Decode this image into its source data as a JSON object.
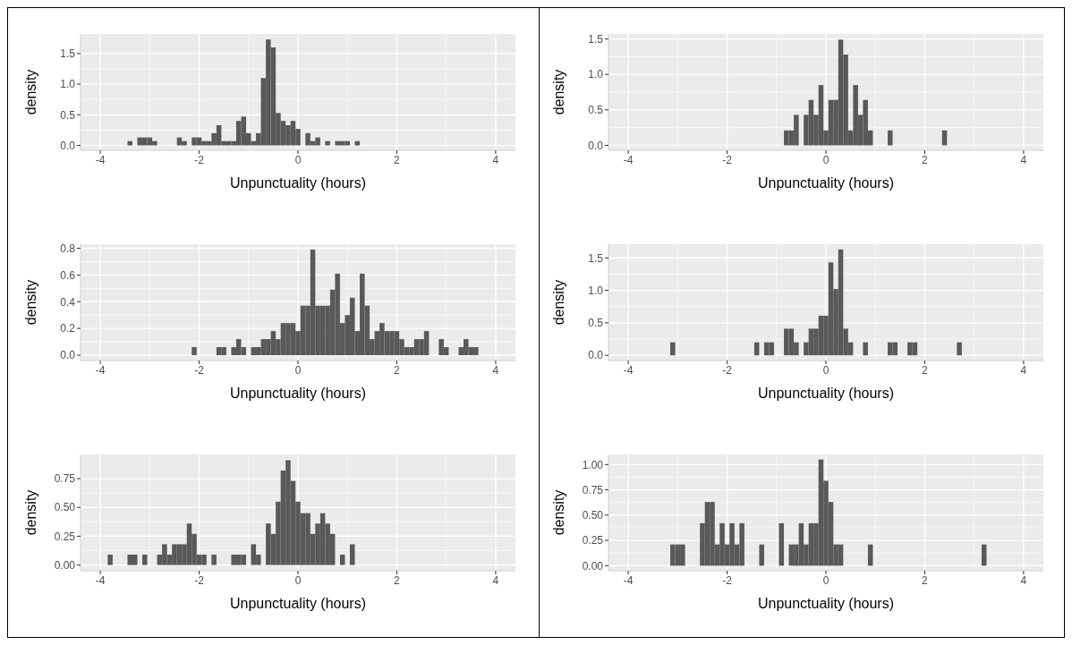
{
  "chart_data": [
    {
      "type": "histogram",
      "xlabel": "Unpunctuality (hours)",
      "ylabel": "density",
      "color": "#595959",
      "grid": true,
      "xlim": [
        -4.4,
        4.4
      ],
      "ylim": [
        -0.08,
        1.82
      ],
      "xticks": [
        -4,
        -2,
        0,
        2,
        4
      ],
      "yticks": [
        {
          "value": 0,
          "label": "0.0"
        },
        {
          "value": 0.5,
          "label": "0.5"
        },
        {
          "value": 1,
          "label": "1.0"
        },
        {
          "value": 1.5,
          "label": "1.5"
        }
      ],
      "bins": [
        -3.45,
        -3.35,
        -3.25,
        -3.15,
        -3.05,
        -2.95,
        -2.85,
        -2.75,
        -2.65,
        -2.55,
        -2.45,
        -2.35,
        -2.25,
        -2.15,
        -2.05,
        -1.95,
        -1.85,
        -1.75,
        -1.65,
        -1.55,
        -1.45,
        -1.35,
        -1.25,
        -1.15,
        -1.05,
        -0.95,
        -0.85,
        -0.75,
        -0.65,
        -0.55,
        -0.45,
        -0.35,
        -0.25,
        -0.15,
        -0.05,
        0.05,
        0.15,
        0.25,
        0.35,
        0.45,
        0.55,
        0.65,
        0.75,
        0.85,
        0.95,
        1.05,
        1.15,
        1.25
      ],
      "values": [
        0.07,
        0,
        0.13,
        0.13,
        0.13,
        0.07,
        0,
        0,
        0,
        0,
        0.13,
        0.07,
        0,
        0.13,
        0.13,
        0.07,
        0.07,
        0.2,
        0.33,
        0.07,
        0.07,
        0.07,
        0.4,
        0.47,
        0.2,
        0.07,
        0.2,
        1.1,
        1.73,
        1.6,
        0.53,
        0.4,
        0.33,
        0.4,
        0.27,
        0,
        0.2,
        0.07,
        0.13,
        0,
        0.07,
        0,
        0.07,
        0.07,
        0.07,
        0,
        0.07
      ]
    },
    {
      "type": "histogram",
      "xlabel": "Unpunctuality (hours)",
      "ylabel": "density",
      "color": "#595959",
      "grid": true,
      "xlim": [
        -4.4,
        4.4
      ],
      "ylim": [
        -0.07,
        1.57
      ],
      "xticks": [
        -4,
        -2,
        0,
        2,
        4
      ],
      "yticks": [
        {
          "value": 0,
          "label": "0.0"
        },
        {
          "value": 0.5,
          "label": "0.5"
        },
        {
          "value": 1,
          "label": "1.0"
        },
        {
          "value": 1.5,
          "label": "1.5"
        }
      ],
      "bins": [
        -0.85,
        -0.75,
        -0.65,
        -0.55,
        -0.45,
        -0.35,
        -0.25,
        -0.15,
        -0.05,
        0.05,
        0.15,
        0.25,
        0.35,
        0.45,
        0.55,
        0.65,
        0.75,
        0.85,
        0.95,
        1.05,
        1.15,
        1.25,
        1.35,
        1.45,
        1.55,
        1.65,
        1.75,
        1.85,
        1.95,
        2.05,
        2.15,
        2.25,
        2.35,
        2.45
      ],
      "values": [
        0.21,
        0.21,
        0.43,
        0,
        0.43,
        0.64,
        0.43,
        0.85,
        0.21,
        0.64,
        0.64,
        1.49,
        1.28,
        0.21,
        0.85,
        0.43,
        0.64,
        0.21,
        0,
        0,
        0,
        0.21,
        0,
        0,
        0,
        0,
        0,
        0,
        0,
        0,
        0,
        0,
        0.21
      ]
    },
    {
      "type": "histogram",
      "xlabel": "Unpunctuality (hours)",
      "ylabel": "density",
      "color": "#595959",
      "grid": true,
      "xlim": [
        -4.4,
        4.4
      ],
      "ylim": [
        -0.04,
        0.83
      ],
      "xticks": [
        -4,
        -2,
        0,
        2,
        4
      ],
      "yticks": [
        {
          "value": 0,
          "label": "0.0"
        },
        {
          "value": 0.2,
          "label": "0.2"
        },
        {
          "value": 0.4,
          "label": "0.4"
        },
        {
          "value": 0.6,
          "label": "0.6"
        },
        {
          "value": 0.8,
          "label": "0.8"
        }
      ],
      "bins": [
        -2.15,
        -2.05,
        -1.95,
        -1.85,
        -1.75,
        -1.65,
        -1.55,
        -1.45,
        -1.35,
        -1.25,
        -1.15,
        -1.05,
        -0.95,
        -0.85,
        -0.75,
        -0.65,
        -0.55,
        -0.45,
        -0.35,
        -0.25,
        -0.15,
        -0.05,
        0.05,
        0.15,
        0.25,
        0.35,
        0.45,
        0.55,
        0.65,
        0.75,
        0.85,
        0.95,
        1.05,
        1.15,
        1.25,
        1.35,
        1.45,
        1.55,
        1.65,
        1.75,
        1.85,
        1.95,
        2.05,
        2.15,
        2.25,
        2.35,
        2.45,
        2.55,
        2.65,
        2.75,
        2.85,
        2.95,
        3.05,
        3.15,
        3.25,
        3.35,
        3.45,
        3.55,
        3.65
      ],
      "values": [
        0.06,
        0,
        0,
        0,
        0,
        0.06,
        0.06,
        0,
        0.06,
        0.12,
        0.06,
        0,
        0.06,
        0.06,
        0.12,
        0.12,
        0.18,
        0.12,
        0.24,
        0.24,
        0.24,
        0.18,
        0.37,
        0.37,
        0.79,
        0.37,
        0.37,
        0.37,
        0.49,
        0.61,
        0.24,
        0.3,
        0.43,
        0.18,
        0.61,
        0.37,
        0.12,
        0.18,
        0.24,
        0.18,
        0.18,
        0.18,
        0.12,
        0.06,
        0.06,
        0.12,
        0.12,
        0.18,
        0,
        0,
        0.12,
        0.06,
        0,
        0,
        0.06,
        0.12,
        0.06,
        0.06
      ]
    },
    {
      "type": "histogram",
      "xlabel": "Unpunctuality (hours)",
      "ylabel": "density",
      "color": "#595959",
      "grid": true,
      "xlim": [
        -4.4,
        4.4
      ],
      "ylim": [
        -0.08,
        1.71
      ],
      "xticks": [
        -4,
        -2,
        0,
        2,
        4
      ],
      "yticks": [
        {
          "value": 0,
          "label": "0.0"
        },
        {
          "value": 0.5,
          "label": "0.5"
        },
        {
          "value": 1,
          "label": "1.0"
        },
        {
          "value": 1.5,
          "label": "1.5"
        }
      ],
      "bins": [
        -3.15,
        -3.05,
        -2.95,
        -2.85,
        -2.75,
        -2.65,
        -2.55,
        -2.45,
        -2.35,
        -2.25,
        -2.15,
        -2.05,
        -1.95,
        -1.85,
        -1.75,
        -1.65,
        -1.55,
        -1.45,
        -1.35,
        -1.25,
        -1.15,
        -1.05,
        -0.95,
        -0.85,
        -0.75,
        -0.65,
        -0.55,
        -0.45,
        -0.35,
        -0.25,
        -0.15,
        -0.05,
        0.05,
        0.15,
        0.25,
        0.35,
        0.45,
        0.55,
        0.65,
        0.75,
        0.85,
        0.95,
        1.05,
        1.15,
        1.25,
        1.35,
        1.45,
        1.55,
        1.65,
        1.75,
        1.85,
        1.95,
        2.05,
        2.15,
        2.25,
        2.35,
        2.45,
        2.55,
        2.65,
        2.75
      ],
      "values": [
        0.2,
        0,
        0,
        0,
        0,
        0,
        0,
        0,
        0,
        0,
        0,
        0,
        0,
        0,
        0,
        0,
        0,
        0.2,
        0,
        0.2,
        0.2,
        0,
        0,
        0.41,
        0.41,
        0.2,
        0,
        0.2,
        0.41,
        0.41,
        0.61,
        0.61,
        1.43,
        1.02,
        1.63,
        0.41,
        0.2,
        0,
        0,
        0.2,
        0,
        0,
        0,
        0,
        0.2,
        0.2,
        0,
        0,
        0.2,
        0.2,
        0,
        0,
        0,
        0,
        0,
        0,
        0,
        0,
        0.2
      ]
    },
    {
      "type": "histogram",
      "xlabel": "Unpunctuality (hours)",
      "ylabel": "density",
      "color": "#595959",
      "grid": true,
      "xlim": [
        -4.4,
        4.4
      ],
      "ylim": [
        -0.05,
        0.96
      ],
      "xticks": [
        -4,
        -2,
        0,
        2,
        4
      ],
      "yticks": [
        {
          "value": 0,
          "label": "0.00"
        },
        {
          "value": 0.25,
          "label": "0.25"
        },
        {
          "value": 0.5,
          "label": "0.50"
        },
        {
          "value": 0.75,
          "label": "0.75"
        }
      ],
      "bins": [
        -3.85,
        -3.75,
        -3.65,
        -3.55,
        -3.45,
        -3.35,
        -3.25,
        -3.15,
        -3.05,
        -2.95,
        -2.85,
        -2.75,
        -2.65,
        -2.55,
        -2.45,
        -2.35,
        -2.25,
        -2.15,
        -2.05,
        -1.95,
        -1.85,
        -1.75,
        -1.65,
        -1.55,
        -1.45,
        -1.35,
        -1.25,
        -1.15,
        -1.05,
        -0.95,
        -0.85,
        -0.75,
        -0.65,
        -0.55,
        -0.45,
        -0.35,
        -0.25,
        -0.15,
        -0.05,
        0.05,
        0.15,
        0.25,
        0.35,
        0.45,
        0.55,
        0.65,
        0.75,
        0.85,
        0.95,
        1.05,
        1.15
      ],
      "values": [
        0.09,
        0,
        0,
        0,
        0.09,
        0.09,
        0,
        0.09,
        0,
        0,
        0.09,
        0.18,
        0.09,
        0.18,
        0.18,
        0.18,
        0.36,
        0.27,
        0.09,
        0.09,
        0,
        0.09,
        0,
        0,
        0,
        0.09,
        0.09,
        0.09,
        0,
        0.18,
        0.09,
        0,
        0.36,
        0.27,
        0.55,
        0.82,
        0.91,
        0.73,
        0.55,
        0.45,
        0.45,
        0.27,
        0.36,
        0.45,
        0.36,
        0.27,
        0,
        0.09,
        0,
        0.18
      ]
    },
    {
      "type": "histogram",
      "xlabel": "Unpunctuality (hours)",
      "ylabel": "density",
      "color": "#595959",
      "grid": true,
      "xlim": [
        -4.4,
        4.4
      ],
      "ylim": [
        -0.05,
        1.1
      ],
      "xticks": [
        -4,
        -2,
        0,
        2,
        4
      ],
      "yticks": [
        {
          "value": 0,
          "label": "0.00"
        },
        {
          "value": 0.25,
          "label": "0.25"
        },
        {
          "value": 0.5,
          "label": "0.50"
        },
        {
          "value": 0.75,
          "label": "0.75"
        },
        {
          "value": 1,
          "label": "1.00"
        }
      ],
      "bins": [
        -3.15,
        -3.05,
        -2.95,
        -2.85,
        -2.75,
        -2.65,
        -2.55,
        -2.45,
        -2.35,
        -2.25,
        -2.15,
        -2.05,
        -1.95,
        -1.85,
        -1.75,
        -1.65,
        -1.55,
        -1.45,
        -1.35,
        -1.25,
        -1.15,
        -1.05,
        -0.95,
        -0.85,
        -0.75,
        -0.65,
        -0.55,
        -0.45,
        -0.35,
        -0.25,
        -0.15,
        -0.05,
        0.05,
        0.15,
        0.25,
        0.35,
        0.45,
        0.55,
        0.65,
        0.75,
        0.85,
        0.95,
        1.05,
        1.15,
        1.25,
        1.35,
        1.45,
        1.55,
        1.65,
        1.75,
        1.85,
        1.95,
        2.05,
        2.15,
        2.25,
        2.35,
        2.45,
        2.55,
        2.65,
        2.75,
        2.85,
        2.95,
        3.05,
        3.15,
        3.25
      ],
      "values": [
        0.21,
        0.21,
        0.21,
        0,
        0,
        0,
        0.42,
        0.63,
        0.63,
        0.21,
        0.42,
        0.21,
        0.42,
        0.21,
        0.42,
        0,
        0,
        0,
        0.21,
        0,
        0,
        0,
        0.42,
        0,
        0.21,
        0.21,
        0.42,
        0.21,
        0.42,
        0.42,
        1.05,
        0.84,
        0.63,
        0.21,
        0.21,
        0,
        0,
        0,
        0,
        0,
        0.21,
        0,
        0,
        0,
        0,
        0,
        0,
        0,
        0,
        0,
        0,
        0,
        0,
        0,
        0,
        0,
        0,
        0,
        0,
        0,
        0,
        0,
        0,
        0.21
      ]
    }
  ]
}
